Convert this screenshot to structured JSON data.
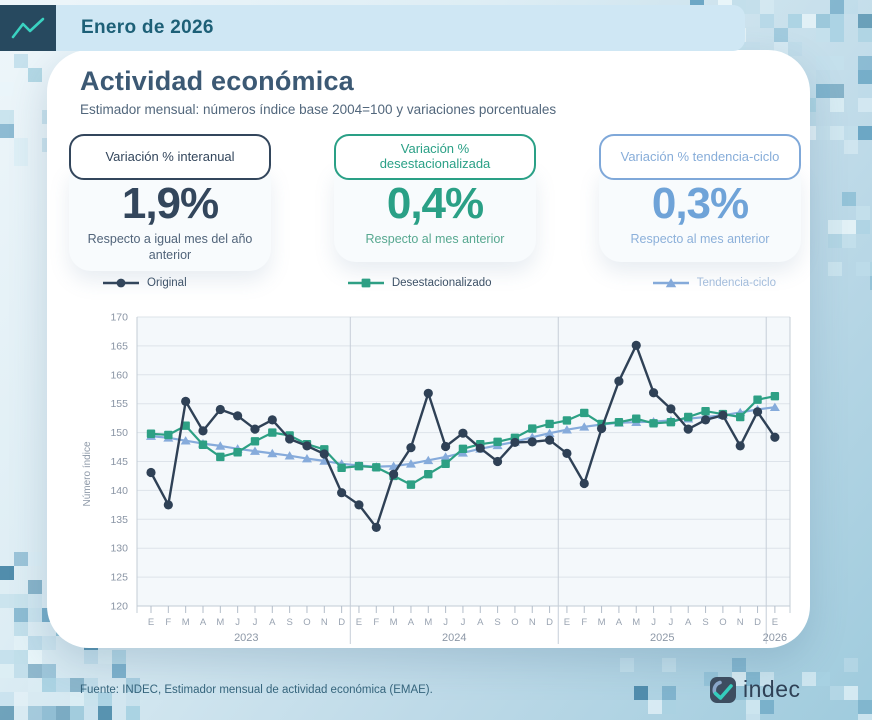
{
  "header": {
    "date": "Enero de 2026"
  },
  "page": {
    "title": "Actividad económica",
    "subtitle": "Estimador mensual: números índice base 2004=100 y variaciones porcentuales"
  },
  "stats": [
    {
      "label": "Variación % interanual",
      "value": "1,9%",
      "caption": "Respecto a igual mes del año anterior",
      "color": "#33465c"
    },
    {
      "label": "Variación % desestacionalizada",
      "value": "0,4%",
      "caption": "Respecto al mes anterior",
      "color": "#2aa086"
    },
    {
      "label": "Variación % tendencia-ciclo",
      "value": "0,3%",
      "caption": "Respecto al mes anterior",
      "color": "#7fa8d9"
    }
  ],
  "chart_data": {
    "type": "line",
    "ylabel": "Número índice",
    "ylim": [
      120,
      170
    ],
    "ytick_step": 5,
    "grid": true,
    "legend_position": "top",
    "month_labels": [
      "E",
      "F",
      "M",
      "A",
      "M",
      "J",
      "J",
      "A",
      "S",
      "O",
      "N",
      "D"
    ],
    "years": [
      {
        "label": "2023",
        "months": 12
      },
      {
        "label": "2024",
        "months": 12
      },
      {
        "label": "2025",
        "months": 12
      },
      {
        "label": "2026",
        "months": 1
      }
    ],
    "series": [
      {
        "name": "Original",
        "marker": "circle",
        "color": "#2f4156",
        "label_color": "#3d5166",
        "values": [
          143.1,
          137.5,
          155.4,
          150.3,
          154.0,
          152.9,
          150.6,
          152.2,
          148.9,
          147.7,
          146.3,
          139.6,
          137.5,
          133.6,
          142.8,
          147.4,
          156.8,
          147.6,
          149.9,
          147.3,
          145.0,
          148.3,
          148.4,
          148.7,
          146.4,
          141.2,
          150.7,
          158.9,
          165.1,
          156.9,
          154.1,
          150.6,
          152.2,
          153.0,
          147.7,
          153.6,
          149.2
        ]
      },
      {
        "name": "Desestacionalizado",
        "marker": "square",
        "color": "#2da084",
        "label_color": "#3d5166",
        "values": [
          149.8,
          149.6,
          151.2,
          147.9,
          145.8,
          146.6,
          148.5,
          150.0,
          149.5,
          148.0,
          147.1,
          143.9,
          144.2,
          144.0,
          142.5,
          141.0,
          142.8,
          144.6,
          147.2,
          148.0,
          148.4,
          149.1,
          150.7,
          151.5,
          152.1,
          153.4,
          151.5,
          151.8,
          152.4,
          151.6,
          151.8,
          152.7,
          153.7,
          153.2,
          152.7,
          155.7,
          156.3
        ]
      },
      {
        "name": "Tendencia-ciclo",
        "marker": "triangle",
        "color": "#86abdb",
        "label_color": "#a5bedd",
        "values": [
          149.4,
          149.1,
          148.6,
          148.1,
          147.7,
          147.2,
          146.8,
          146.4,
          146.0,
          145.5,
          145.1,
          144.6,
          144.3,
          144.1,
          144.2,
          144.6,
          145.2,
          145.8,
          146.5,
          147.2,
          147.8,
          148.4,
          149.2,
          149.9,
          150.5,
          151.0,
          151.4,
          151.7,
          151.8,
          151.9,
          152.1,
          152.4,
          152.7,
          153.0,
          153.5,
          154.0,
          154.4
        ]
      }
    ]
  },
  "footer": {
    "source": "Fuente: INDEC, Estimador mensual de actividad económica (EMAE).",
    "logo_text": "indec"
  }
}
